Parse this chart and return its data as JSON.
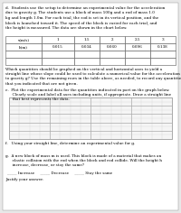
{
  "table_headers": [
    "v(m/s)",
    "1",
    "1.5",
    "2",
    "2.5",
    "3"
  ],
  "table_row1": [
    "h(m)",
    "0.015",
    "0.034",
    "0.060",
    "0.096",
    "0.138"
  ],
  "table_row2": [
    "",
    "",
    "",
    "",
    "",
    ""
  ],
  "table_row3": [
    "",
    "",
    "",
    "",
    "",
    ""
  ],
  "part_f_text": "f.   Using your straight line, determine an experimental value for g.",
  "options_text": "_____ Increase     _____ Decrease     _____ Stay the same",
  "justify_text": "Justify your answer.",
  "grid_rows": 10,
  "grid_cols": 16,
  "grid_color": "#cccccc",
  "grid_major_color": "#aaaaaa",
  "background_color": "#e8e8e8",
  "paper_color": "#ffffff",
  "text_color": "#000000",
  "font_size_small": 3.0,
  "title_lines": [
    "d.  Students use the setup to determine an experimental value for the acceleration",
    "due to gravity g. The students use a block of mass 500g and a rod of mass 1.0",
    "kg and length 1.0m. For each trial, the rod is set in its vertical position, and the",
    "block is launched toward it. The speed of the block is varied for each trial, and",
    "the height is measured. The data are shown in the chart below."
  ],
  "question_lines": [
    "Which quantities should be graphed on the vertical and horizontal axes to yield a",
    "straight line whose slope could be used to calculate a numerical value for the acceleration due",
    "to gravity g? Use the remaining rows in the table above, as needed, to record any quantities",
    "that you indicated that are not given."
  ],
  "part_e_lines": [
    "e.  Plot the experimental data for the quantities indicated in part on the graph below.",
    "      Clearly scale and label all axes including units, if appropriate. Draw a straight line",
    "      that best represents the data."
  ],
  "part_g_lines": [
    "g.  A new block of mass m is used. This block is made of a material that makes an",
    "      elastic collision with the rod when the block and rod collide. Will the height h",
    "      increase, decrease, or stay the same?"
  ],
  "col_positions": [
    6,
    46,
    82,
    110,
    138,
    166,
    194
  ],
  "row_positions": [
    196,
    188,
    180,
    172,
    164
  ]
}
